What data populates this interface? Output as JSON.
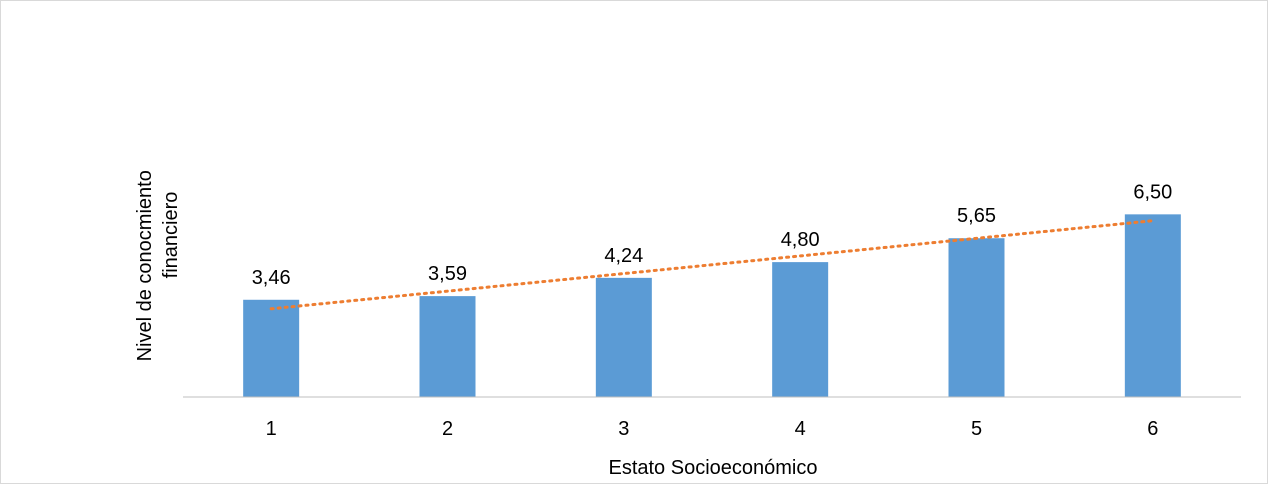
{
  "chart_data": {
    "type": "bar",
    "categories": [
      "1",
      "2",
      "3",
      "4",
      "5",
      "6"
    ],
    "values": [
      3.46,
      3.59,
      4.24,
      4.8,
      5.65,
      6.5
    ],
    "data_labels": [
      "3,46",
      "3,59",
      "4,24",
      "4,80",
      "5,65",
      "6,50"
    ],
    "title": "",
    "xlabel": "Estato Socioeconómico",
    "ylabel_lines": [
      "Nivel de conocmiento",
      "financiero"
    ],
    "ylim": [
      0,
      8.6
    ],
    "grid": false,
    "legend": "none",
    "trendline": {
      "type": "linear",
      "style": "dotted"
    },
    "colors": {
      "bar": "#5b9bd5",
      "trendline": "#ed7d31",
      "axis": "#bfbfbf"
    }
  }
}
